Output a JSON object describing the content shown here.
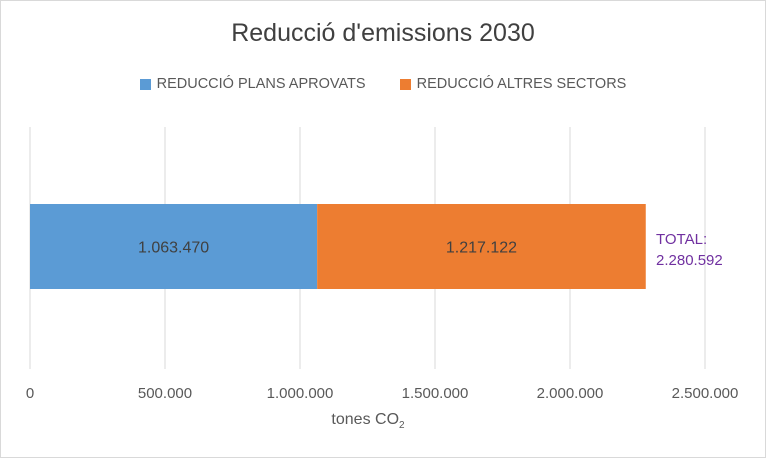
{
  "chart_data": {
    "type": "bar",
    "orientation": "horizontal",
    "stacked": true,
    "title": "Reducció d'emissions 2030",
    "xlabel": "tones CO",
    "xlabel_subscript": "2",
    "ylabel": "",
    "xlim": [
      0,
      2500000
    ],
    "xticks": [
      0,
      500000,
      1000000,
      1500000,
      2000000,
      2500000
    ],
    "xtick_labels": [
      "0",
      "500.000",
      "1.000.000",
      "1.500.000",
      "2.000.000",
      "2.500.000"
    ],
    "grid": true,
    "legend_position": "top",
    "series": [
      {
        "name": "REDUCCIÓ PLANS APROVATS",
        "values": [
          1063470
        ],
        "label": "1.063.470",
        "color": "#5b9bd5"
      },
      {
        "name": "REDUCCIÓ ALTRES SECTORS",
        "values": [
          1217122
        ],
        "label": "1.217.122",
        "color": "#ed7d31"
      }
    ],
    "total": {
      "value": 2280592,
      "label_prefix": "TOTAL:",
      "label_value": "2.280.592",
      "color": "#7030a0"
    }
  }
}
